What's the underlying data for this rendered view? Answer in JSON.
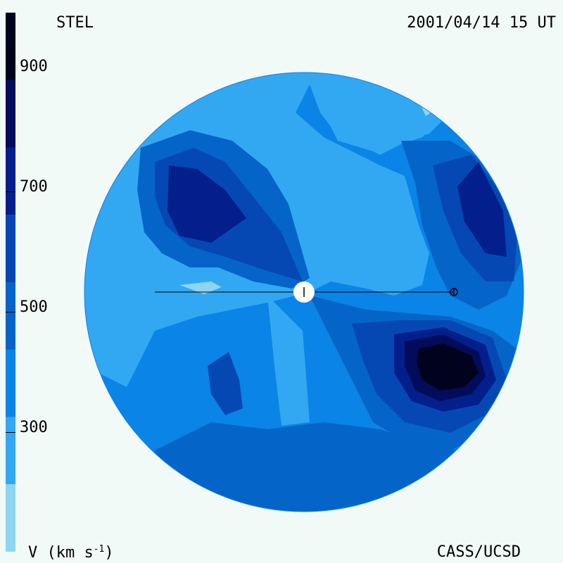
{
  "header": {
    "source": "STEL",
    "datetime": "2001/04/14 15 UT"
  },
  "footer": {
    "credit": "CASS/UCSD",
    "unit_prefix": "V (km s",
    "unit_exp": "-1",
    "unit_suffix": ")"
  },
  "colorbar": {
    "ticks": [
      "900",
      "700",
      "500",
      "300"
    ],
    "levels": [
      {
        "color": "#8fd4f2"
      },
      {
        "color": "#32a8f2"
      },
      {
        "color": "#0a84e6"
      },
      {
        "color": "#0564c8"
      },
      {
        "color": "#0548b4"
      },
      {
        "color": "#031f8c"
      },
      {
        "color": "#030c5a"
      },
      {
        "color": "#01031e"
      }
    ]
  },
  "map": {
    "description_colors": {
      "sun_fill": "#ffffff",
      "line_color": "#000000"
    },
    "markers": [
      {
        "name": "sun",
        "symbol": "sun-dot"
      },
      {
        "name": "earth",
        "symbol": "earth-symbol"
      }
    ]
  }
}
